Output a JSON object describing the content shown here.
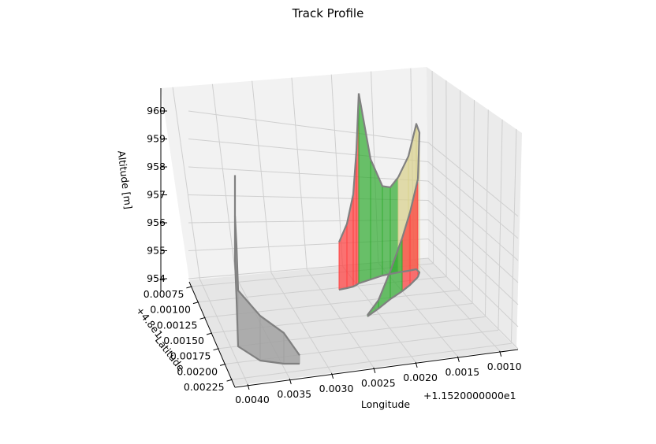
{
  "chart_data": {
    "type": "line",
    "projection": "3d",
    "title": "Track Profile",
    "xlabel": "Longitude",
    "ylabel": "Latitude",
    "zlabel": "Altitude [m]",
    "x_offset_text": "+1.1520000000e1",
    "y_offset_text": "+4.8e1",
    "x_ticks": [
      "0.0040",
      "0.0035",
      "0.0030",
      "0.0025",
      "0.0020",
      "0.0015",
      "0.0010"
    ],
    "y_ticks": [
      "0.00075",
      "0.00100",
      "0.00125",
      "0.00150",
      "0.00175",
      "0.00200",
      "0.00225"
    ],
    "z_ticks": [
      "954",
      "955",
      "956",
      "957",
      "958",
      "959",
      "960"
    ],
    "zlim": [
      953.9,
      960.8
    ],
    "grid": true,
    "pane_color": "#f2f2f2",
    "outline_color": "#808080",
    "fill_colors": {
      "flat": "#9e9e9e",
      "ascent": "#ff3b3b",
      "descent": "#2eaa2e",
      "highlight": "#d8d08a"
    },
    "series": [
      {
        "segments": [
          {
            "kind": "flat",
            "altitude": [
              955.35,
              955.48,
              955.8,
              955.9,
              955.5,
              955.0,
              954.2
            ]
          },
          {
            "kind": "ascent",
            "altitude": [
              955.6,
              956.2,
              957.2,
              958.7,
              960.7
            ]
          },
          {
            "kind": "descent",
            "altitude": [
              960.7,
              958.2,
              957.1,
              957.0,
              957.3
            ]
          },
          {
            "kind": "highlight",
            "altitude": [
              957.3,
              958.0,
              959.1,
              958.9,
              957.4
            ]
          },
          {
            "kind": "ascent",
            "altitude": [
              957.4,
              956.5,
              955.8
            ]
          },
          {
            "kind": "descent",
            "altitude": [
              955.8,
              954.9,
              954.2,
              953.95
            ]
          }
        ]
      }
    ]
  }
}
